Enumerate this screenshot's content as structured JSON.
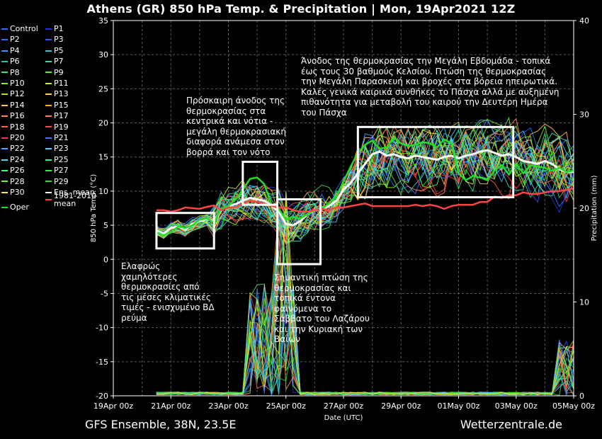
{
  "title": "Athens  (GR)  850 hPa Temp. & Precipitation | Mon, 19Apr2021 12Z",
  "footer": {
    "left": "GFS Ensemble, 38N, 23.5E",
    "right": "Wetterzentrale.de"
  },
  "legend": {
    "items": [
      {
        "label": "Control",
        "color": "#3b6bff"
      },
      {
        "label": "P1",
        "color": "#2233dd"
      },
      {
        "label": "P2",
        "color": "#2f6cff"
      },
      {
        "label": "P3",
        "color": "#3355ff"
      },
      {
        "label": "P4",
        "color": "#3399ff"
      },
      {
        "label": "P5",
        "color": "#33cccc"
      },
      {
        "label": "P6",
        "color": "#22ccaa"
      },
      {
        "label": "P7",
        "color": "#33ddaa"
      },
      {
        "label": "P8",
        "color": "#44dd77"
      },
      {
        "label": "P9",
        "color": "#66ee33"
      },
      {
        "label": "P10",
        "color": "#88ee22"
      },
      {
        "label": "P11",
        "color": "#ccee22"
      },
      {
        "label": "P12",
        "color": "#aadd33"
      },
      {
        "label": "P13",
        "color": "#ffcc55"
      },
      {
        "label": "P14",
        "color": "#ffbb66"
      },
      {
        "label": "P15",
        "color": "#ffaa33"
      },
      {
        "label": "P16",
        "color": "#ff8855"
      },
      {
        "label": "P17",
        "color": "#ff7766"
      },
      {
        "label": "P18",
        "color": "#ff6644"
      },
      {
        "label": "P19",
        "color": "#ff4444"
      },
      {
        "label": "P20",
        "color": "#ff3355"
      },
      {
        "label": "P21",
        "color": "#4477ff"
      },
      {
        "label": "P22",
        "color": "#44aaff"
      },
      {
        "label": "P23",
        "color": "#44ccff"
      },
      {
        "label": "P24",
        "color": "#44ddee"
      },
      {
        "label": "P25",
        "color": "#33eebb"
      },
      {
        "label": "P26",
        "color": "#55ee88"
      },
      {
        "label": "P27",
        "color": "#44dd55"
      },
      {
        "label": "P28",
        "color": "#77ee33"
      },
      {
        "label": "P29",
        "color": "#33dd22"
      },
      {
        "label": "P30",
        "color": "#ffee33"
      },
      {
        "label": "Ens. mean",
        "color": "#ffffff"
      },
      {
        "label": "Oper",
        "color": "#22dd22"
      },
      {
        "label": "1981-2010 mean",
        "color": "#ff4444"
      }
    ]
  },
  "annotations": {
    "a1": "Άνοδος της θερμοκρασίας την Μεγάλη Εβδομάδα - τοπικά έως τους 30 βαθμούς Κελσίου. Πτώση της θερμοκρασίας την Μεγάλη Παρασκευή και βροχές στα βόρεια ηπειρωτικά. Καλές γενικά καιρικά συνθήκες το Πάσχα αλλά με αυξημένη πιθανότητα για μεταβολή του καιρού την Δευτέρη Ημέρα του Πάσχα",
    "a2": "Πρόσκαιρη άνοδος της θερμοκρασίας στα κεντρικά και νότια - μεγάλη θερμοκρασιακή διαφορά ανάμεσα στον βορρά και τον νότο",
    "a3": "Ελαφρώς χαμηλότερες θερμοκρασίες από τις μέσες κλιματικές τιμές - ενισχυμένο ΒΔ ρεύμα",
    "a4": "Σημαντική πτώση της θερμοκρασίας και τοπικά έντονα φαινόμενα το Σάββατο του Λαζάρου και την Κυριακή των Βαΐων"
  },
  "chart_data": {
    "type": "line",
    "title": "Athens  (GR)  850 hPa Temp. & Precipitation | Mon, 19Apr2021 12Z",
    "xlabel": "Date (UTC)",
    "ylabel": "850 hPa Temp. (°C)",
    "y2label": "Precipitation (mm)",
    "ylim": [
      -20,
      35
    ],
    "y2lim": [
      0,
      40
    ],
    "yticks": [
      -20,
      -15,
      -10,
      -5,
      0,
      5,
      10,
      15,
      20,
      25,
      30,
      35
    ],
    "y2ticks": [
      0,
      10,
      20,
      30,
      40
    ],
    "x_range_days": [
      0,
      16
    ],
    "xtick_labels": [
      "19Apr 00z",
      "21Apr 00z",
      "23Apr 00z",
      "25Apr 00z",
      "27Apr 00z",
      "29Apr 00z",
      "01May 00z",
      "03May 00z",
      "05May 00z"
    ],
    "xtick_days": [
      0,
      2,
      4,
      6,
      8,
      10,
      12,
      14,
      16
    ],
    "grid": true,
    "legend_placement": "left-outside",
    "series": [
      {
        "name": "Ens. mean",
        "color": "#ffffff",
        "width": 3,
        "x": [
          1.5,
          1.75,
          2,
          2.25,
          2.5,
          2.75,
          3,
          3.25,
          3.5,
          3.75,
          4,
          4.25,
          4.5,
          4.75,
          5,
          5.25,
          5.5,
          5.75,
          6,
          6.25,
          6.5,
          6.75,
          7,
          7.25,
          7.5,
          7.75,
          8,
          8.25,
          8.5,
          8.75,
          9,
          9.25,
          9.5,
          9.75,
          10,
          10.25,
          10.5,
          10.75,
          11,
          11.25,
          11.5,
          11.75,
          12,
          12.25,
          12.5,
          12.75,
          13,
          13.25,
          13.5,
          13.75,
          14,
          14.25,
          14.5,
          14.75,
          15,
          15.25,
          15.5,
          15.75,
          16
        ],
        "y": [
          4.2,
          3.8,
          4.6,
          4.8,
          4.4,
          5.2,
          5.6,
          5.9,
          5.6,
          7.2,
          7.8,
          8.1,
          8.6,
          9.0,
          8.8,
          8.6,
          7.8,
          7.0,
          5.2,
          5.0,
          5.6,
          6.6,
          7.2,
          7.4,
          7.8,
          8.6,
          10.2,
          11.2,
          12.6,
          14.0,
          15.4,
          15.8,
          15.2,
          15.4,
          15.0,
          14.8,
          15.2,
          15.0,
          14.8,
          14.6,
          15.0,
          15.2,
          14.8,
          15.2,
          15.4,
          15.8,
          16.0,
          15.6,
          15.2,
          15.4,
          15.0,
          14.4,
          14.2,
          14.0,
          14.4,
          14.0,
          13.2,
          12.8,
          12.8
        ]
      },
      {
        "name": "Oper",
        "color": "#22dd22",
        "width": 2.5,
        "x": [
          1.5,
          1.75,
          2,
          2.25,
          2.5,
          2.75,
          3,
          3.25,
          3.5,
          3.75,
          4,
          4.25,
          4.5,
          4.75,
          5,
          5.25,
          5.5,
          5.75,
          6,
          6.25,
          6.5,
          6.75,
          7,
          7.25,
          7.5,
          7.75,
          8,
          8.25,
          8.5,
          8.75,
          9,
          9.25,
          9.5,
          9.75,
          10,
          10.25,
          10.5,
          10.75,
          11,
          11.25,
          11.5,
          11.75,
          12,
          12.25,
          12.5,
          12.75,
          13,
          13.25,
          13.5,
          13.75,
          14,
          14.25,
          14.5,
          14.75,
          15,
          15.25,
          15.5,
          15.75,
          16
        ],
        "y": [
          4.0,
          3.5,
          4.0,
          4.8,
          4.6,
          5.0,
          5.8,
          6.0,
          5.4,
          7.4,
          7.8,
          8.8,
          10.2,
          11.8,
          12.0,
          11.0,
          8.0,
          7.4,
          5.8,
          6.2,
          6.0,
          6.6,
          7.2,
          7.4,
          8.2,
          9.2,
          11.4,
          13.6,
          15.6,
          16.8,
          17.4,
          16.2,
          16.4,
          17.8,
          17.0,
          16.6,
          16.8,
          17.2,
          17.0,
          16.4,
          17.6,
          17.0,
          12.6,
          11.6,
          12.2,
          12.0,
          11.6,
          13.0,
          13.8,
          12.4,
          14.0,
          12.6,
          13.8,
          13.6,
          13.4,
          13.0,
          13.4,
          12.8,
          13.0
        ]
      },
      {
        "name": "1981-2010 mean",
        "color": "#ff4444",
        "width": 2.5,
        "x": [
          1.5,
          1.75,
          2,
          2.25,
          2.5,
          2.75,
          3,
          3.25,
          3.5,
          3.75,
          4,
          4.25,
          4.5,
          4.75,
          5,
          5.25,
          5.5,
          5.75,
          6,
          6.25,
          6.5,
          6.75,
          7,
          7.25,
          7.5,
          7.75,
          8,
          8.25,
          8.5,
          8.75,
          9,
          9.25,
          9.5,
          9.75,
          10,
          10.25,
          10.5,
          10.75,
          11,
          11.25,
          11.5,
          11.75,
          12,
          12.25,
          12.5,
          12.75,
          13,
          13.25,
          13.5,
          13.75,
          14,
          14.25,
          14.5,
          14.75,
          15,
          15.25,
          15.5,
          15.75,
          16
        ],
        "y": [
          7.2,
          7.2,
          7.0,
          7.2,
          7.6,
          7.5,
          7.4,
          7.7,
          7.9,
          7.2,
          7.6,
          7.6,
          8.2,
          8.6,
          8.4,
          8.2,
          7.8,
          7.6,
          7.6,
          7.2,
          7.0,
          7.0,
          7.2,
          7.4,
          7.2,
          7.6,
          7.6,
          7.8,
          8.0,
          8.2,
          7.8,
          7.8,
          7.8,
          7.8,
          7.8,
          7.8,
          8.0,
          7.8,
          8.0,
          7.8,
          7.4,
          7.8,
          8.0,
          8.0,
          8.0,
          8.4,
          8.4,
          9.2,
          9.0,
          9.4,
          9.4,
          9.8,
          9.6,
          9.6,
          9.8,
          10.0,
          10.0,
          10.2,
          10.4
        ]
      }
    ]
  }
}
